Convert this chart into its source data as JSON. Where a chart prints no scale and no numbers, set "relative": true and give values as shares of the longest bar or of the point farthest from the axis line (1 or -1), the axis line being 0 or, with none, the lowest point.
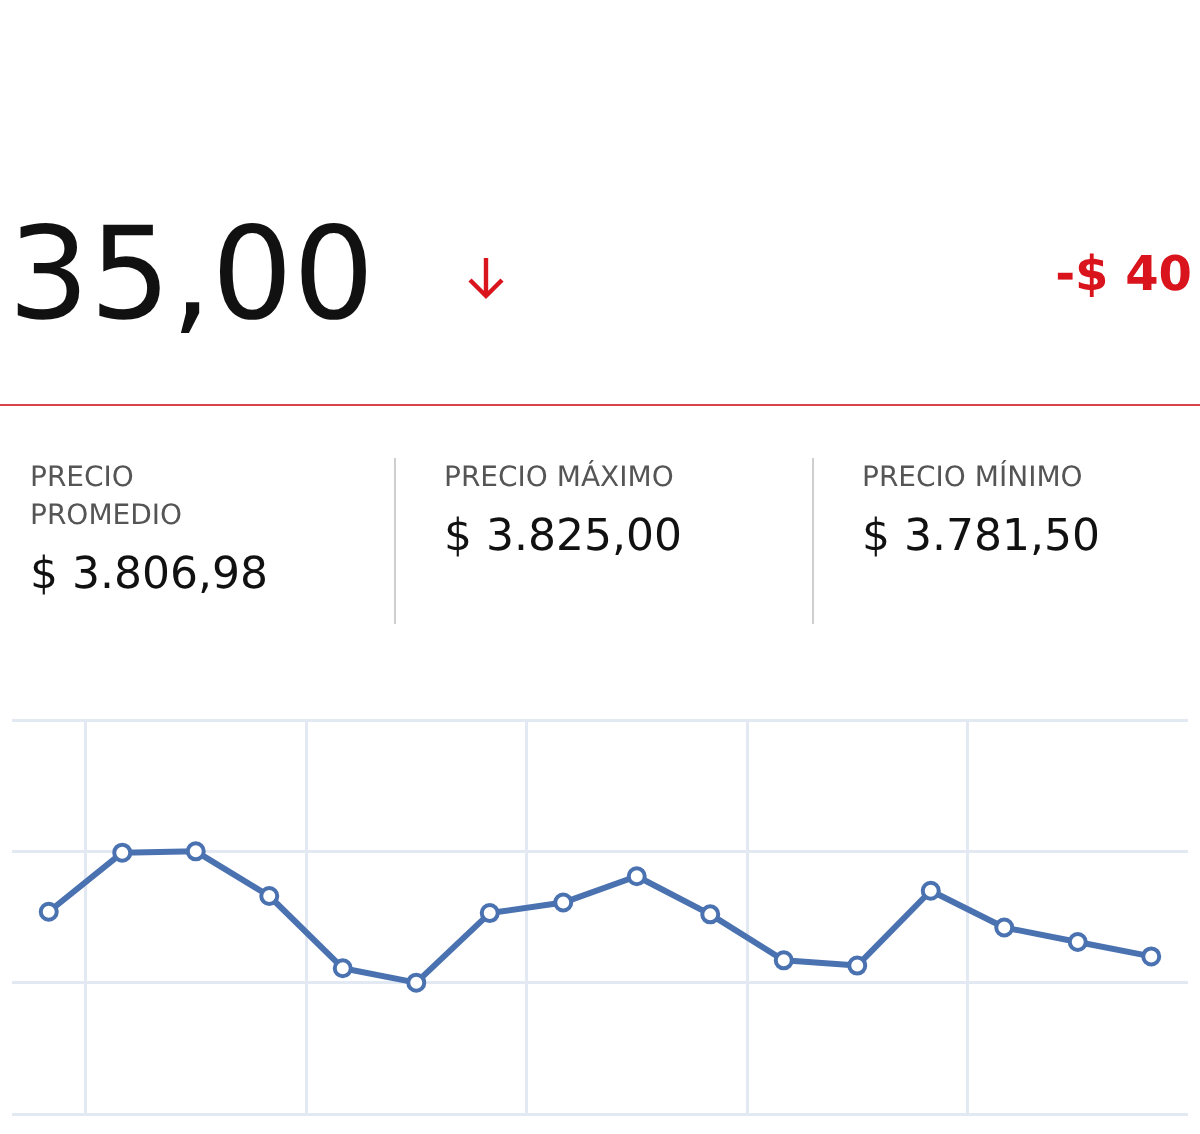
{
  "chart_data": [
    {
      "type": "other",
      "title": "35,00",
      "subtitle": "-$ 40",
      "annotations": [
        "PRECIO PROMEDIO",
        "$ 3.806,98",
        "PRECIO MÁXIMO",
        "$ 3.825,00",
        "PRECIO MÍNIMO",
        "$ 3.781,50"
      ]
    },
    {
      "type": "line",
      "relative": true,
      "categories": [
        null,
        null,
        null,
        null,
        null,
        null,
        null,
        null,
        null,
        null,
        null,
        null,
        null,
        null,
        null,
        null
      ],
      "series": [
        {
          "color": "#4a72b0",
          "values": [
            0.54,
            0.99,
            1,
            0.66,
            0.11,
            0,
            0.53,
            0.61,
            0.81,
            0.52,
            0.17,
            0.13,
            0.7,
            0.42,
            0.31,
            0.2
          ]
        }
      ],
      "marker": "circle",
      "grid": true
    }
  ]
}
